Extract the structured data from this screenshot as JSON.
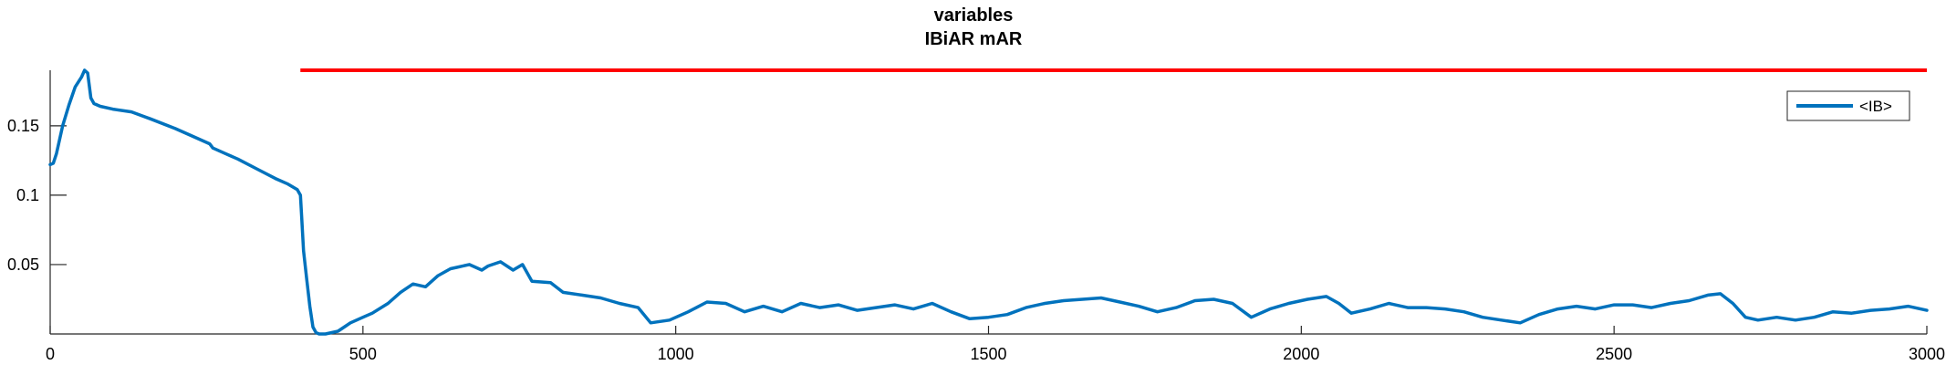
{
  "chart_data": {
    "type": "line",
    "title": "variables",
    "subtitle": "IBiAR mAR",
    "xlabel": "",
    "ylabel": "",
    "xlim": [
      0,
      3000
    ],
    "ylim": [
      0,
      0.19
    ],
    "x_ticks": [
      0,
      500,
      1000,
      1500,
      2000,
      2500,
      3000
    ],
    "x_tick_labels": [
      "0",
      "500",
      "1000",
      "1500",
      "2000",
      "2500",
      "3000"
    ],
    "y_ticks": [
      0.05,
      0.1,
      0.15
    ],
    "y_tick_labels": [
      "0.05",
      "0.1",
      "0.15"
    ],
    "grid": false,
    "legend_position": "top-right",
    "reference_line": {
      "x_start": 400,
      "x_end": 3000,
      "y": 0.19,
      "color": "#ff0000"
    },
    "series": [
      {
        "name": "<IB>",
        "color": "#0072bd",
        "x": [
          0,
          5,
          10,
          20,
          30,
          40,
          50,
          55,
          60,
          65,
          70,
          80,
          100,
          130,
          160,
          200,
          230,
          255,
          260,
          280,
          300,
          330,
          360,
          380,
          395,
          400,
          402,
          405,
          410,
          415,
          420,
          425,
          430,
          440,
          460,
          480,
          500,
          515,
          540,
          560,
          580,
          600,
          620,
          640,
          650,
          670,
          690,
          700,
          720,
          740,
          755,
          770,
          800,
          820,
          850,
          880,
          910,
          940,
          960,
          990,
          1020,
          1050,
          1080,
          1110,
          1140,
          1170,
          1200,
          1230,
          1260,
          1290,
          1320,
          1350,
          1380,
          1410,
          1440,
          1470,
          1500,
          1530,
          1560,
          1590,
          1620,
          1650,
          1680,
          1710,
          1740,
          1770,
          1800,
          1830,
          1860,
          1890,
          1920,
          1950,
          1980,
          2010,
          2040,
          2060,
          2080,
          2110,
          2140,
          2170,
          2200,
          2230,
          2260,
          2290,
          2320,
          2350,
          2380,
          2410,
          2440,
          2470,
          2500,
          2530,
          2560,
          2590,
          2620,
          2650,
          2670,
          2690,
          2710,
          2730,
          2760,
          2790,
          2820,
          2850,
          2880,
          2910,
          2940,
          2970,
          3000
        ],
        "y": [
          0.122,
          0.123,
          0.13,
          0.15,
          0.165,
          0.178,
          0.185,
          0.19,
          0.188,
          0.17,
          0.166,
          0.164,
          0.162,
          0.16,
          0.155,
          0.148,
          0.142,
          0.137,
          0.134,
          0.13,
          0.126,
          0.119,
          0.112,
          0.108,
          0.104,
          0.1,
          0.085,
          0.06,
          0.04,
          0.02,
          0.005,
          0.001,
          0.0,
          0.0,
          0.002,
          0.008,
          0.012,
          0.015,
          0.022,
          0.03,
          0.036,
          0.034,
          0.042,
          0.047,
          0.048,
          0.05,
          0.046,
          0.049,
          0.052,
          0.046,
          0.05,
          0.038,
          0.037,
          0.03,
          0.028,
          0.026,
          0.022,
          0.019,
          0.008,
          0.01,
          0.016,
          0.023,
          0.022,
          0.016,
          0.02,
          0.016,
          0.022,
          0.019,
          0.021,
          0.017,
          0.019,
          0.021,
          0.018,
          0.022,
          0.016,
          0.011,
          0.012,
          0.014,
          0.019,
          0.022,
          0.024,
          0.025,
          0.026,
          0.023,
          0.02,
          0.016,
          0.019,
          0.024,
          0.025,
          0.022,
          0.012,
          0.018,
          0.022,
          0.025,
          0.027,
          0.022,
          0.015,
          0.018,
          0.022,
          0.019,
          0.019,
          0.018,
          0.016,
          0.012,
          0.01,
          0.008,
          0.014,
          0.018,
          0.02,
          0.018,
          0.021,
          0.021,
          0.019,
          0.022,
          0.024,
          0.028,
          0.029,
          0.022,
          0.012,
          0.01,
          0.012,
          0.01,
          0.012,
          0.016,
          0.015,
          0.017,
          0.018,
          0.02,
          0.017
        ]
      }
    ]
  }
}
